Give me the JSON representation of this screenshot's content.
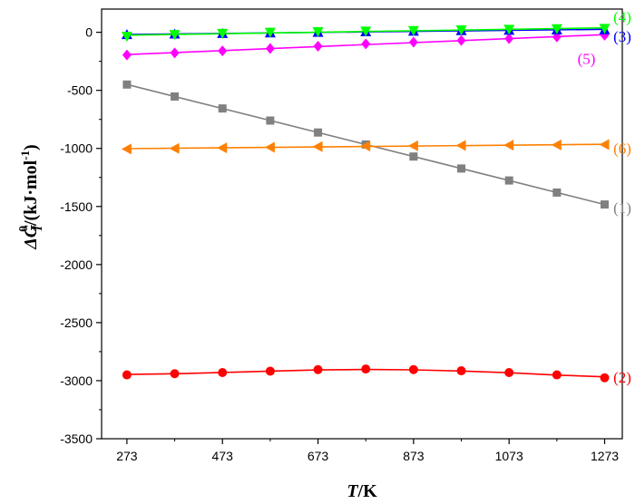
{
  "chart_data": {
    "type": "scatter",
    "title": "",
    "xlabel": {
      "italic": "T",
      "rest": "/K"
    },
    "ylabel": {
      "prefix": "ΔG",
      "sub": "T",
      "sup": "θ",
      "unit": "/(kJ·mol",
      "unit_sup": "-1",
      "unit_end": ")"
    },
    "xlim": [
      220,
      1310
    ],
    "ylim": [
      -3500,
      200
    ],
    "x_ticks": [
      273,
      473,
      673,
      873,
      1073,
      1273
    ],
    "x_tick_labels": [
      "273",
      "473",
      "673",
      "873",
      "1073",
      "1273"
    ],
    "y_ticks": [
      0,
      -500,
      -1000,
      -1500,
      -2000,
      -2500,
      -3000,
      -3500
    ],
    "y_tick_labels": [
      "0",
      "-500",
      "-1000",
      "-1500",
      "-2000",
      "-2500",
      "-3000",
      "-3500"
    ],
    "x": [
      273,
      373,
      473,
      573,
      673,
      773,
      873,
      973,
      1073,
      1173,
      1273
    ],
    "series": [
      {
        "name": "(1)",
        "color": "#808080",
        "marker": "square",
        "fit": "linear",
        "values": [
          -450,
          -553,
          -656,
          -760,
          -863,
          -966,
          -1070,
          -1173,
          -1276,
          -1380,
          -1483
        ]
      },
      {
        "name": "(2)",
        "color": "#ff0000",
        "marker": "circle",
        "fit": "curve",
        "values": [
          -2950,
          -2940,
          -2930,
          -2918,
          -2905,
          -2900,
          -2905,
          -2915,
          -2930,
          -2950,
          -2975
        ]
      },
      {
        "name": "(3)",
        "color": "#0000ff",
        "marker": "triangle-up",
        "fit": "linear",
        "values": [
          -20,
          -15,
          -10,
          -5,
          0,
          5,
          10,
          15,
          18,
          20,
          22
        ]
      },
      {
        "name": "(4)",
        "color": "#00ff00",
        "marker": "triangle-down",
        "fit": "linear",
        "values": [
          -35,
          -20,
          -10,
          0,
          5,
          10,
          15,
          20,
          25,
          30,
          33
        ]
      },
      {
        "name": "(5)",
        "color": "#ff00ff",
        "marker": "diamond",
        "fit": "linear",
        "values": [
          -195,
          -178,
          -160,
          -140,
          -120,
          -100,
          -85,
          -70,
          -55,
          -40,
          -25
        ]
      },
      {
        "name": "(6)",
        "color": "#ff8000",
        "marker": "triangle-left",
        "fit": "linear",
        "values": [
          -1005,
          -1000,
          -995,
          -990,
          -985,
          -980,
          -978,
          -975,
          -972,
          -970,
          -967
        ]
      }
    ],
    "labels": [
      {
        "text": "(4)",
        "color": "#00ff00",
        "x": 1310,
        "y": 135
      },
      {
        "text": "(3)",
        "color": "#0000ff",
        "x": 1310,
        "y": -35
      },
      {
        "text": "(5)",
        "color": "#ff00ff",
        "x": 1235,
        "y": -225
      },
      {
        "text": "(6)",
        "color": "#ff8000",
        "x": 1310,
        "y": -1000
      },
      {
        "text": "(1)",
        "color": "#808080",
        "x": 1310,
        "y": -1510
      },
      {
        "text": "(2)",
        "color": "#ff0000",
        "x": 1310,
        "y": -2970
      }
    ]
  }
}
